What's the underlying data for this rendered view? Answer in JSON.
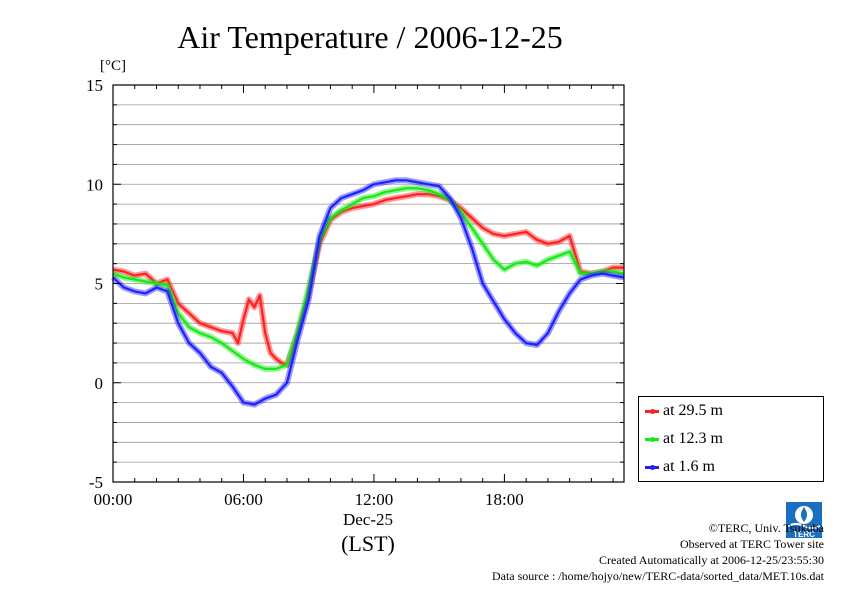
{
  "chart_data": {
    "type": "line",
    "title": "Air Temperature / 2006-12-25",
    "ylabel": "[°C]",
    "xlabel_date": "Dec-25",
    "xlabel_zone": "(LST)",
    "xlim": [
      0,
      23.5
    ],
    "ylim": [
      -5,
      15
    ],
    "yticks": [
      -5,
      0,
      5,
      10,
      15
    ],
    "ytick_labels": [
      "-5",
      "0",
      "5",
      "10",
      "15"
    ],
    "xticks": [
      0,
      6,
      12,
      18
    ],
    "xtick_labels": [
      "00:00",
      "06:00",
      "12:00",
      "18:00"
    ],
    "grid": true,
    "legend_position": "lower-right",
    "series": [
      {
        "name": "at 29.5 m",
        "color": "#ff2020",
        "x": [
          0,
          0.5,
          1,
          1.5,
          2,
          2.5,
          3,
          3.5,
          4,
          4.5,
          5,
          5.5,
          5.75,
          6,
          6.25,
          6.5,
          6.75,
          7,
          7.25,
          7.5,
          7.75,
          8,
          8.5,
          9,
          9.5,
          10,
          10.5,
          11,
          11.5,
          12,
          12.5,
          13,
          13.5,
          14,
          14.5,
          15,
          15.5,
          16,
          16.5,
          17,
          17.5,
          18,
          18.5,
          19,
          19.5,
          20,
          20.5,
          21,
          21.5,
          22,
          22.5,
          23,
          23.5
        ],
        "y": [
          5.7,
          5.6,
          5.4,
          5.5,
          5.0,
          5.2,
          4.0,
          3.5,
          3.0,
          2.8,
          2.6,
          2.5,
          2.0,
          3.2,
          4.2,
          3.8,
          4.4,
          2.5,
          1.5,
          1.2,
          1.0,
          0.9,
          2.5,
          4.5,
          7.0,
          8.2,
          8.6,
          8.8,
          8.9,
          9.0,
          9.2,
          9.3,
          9.4,
          9.5,
          9.5,
          9.4,
          9.2,
          8.8,
          8.3,
          7.8,
          7.5,
          7.4,
          7.5,
          7.6,
          7.2,
          7.0,
          7.1,
          7.4,
          5.6,
          5.5,
          5.6,
          5.8,
          5.8
        ]
      },
      {
        "name": "at 12.3 m",
        "color": "#18e818",
        "x": [
          0,
          0.5,
          1,
          1.5,
          2,
          2.5,
          3,
          3.5,
          4,
          4.5,
          5,
          5.5,
          6,
          6.5,
          7,
          7.5,
          8,
          8.5,
          9,
          9.5,
          10,
          10.5,
          11,
          11.5,
          12,
          12.5,
          13,
          13.5,
          14,
          14.5,
          15,
          15.5,
          16,
          16.5,
          17,
          17.5,
          18,
          18.5,
          19,
          19.5,
          20,
          20.5,
          21,
          21.5,
          22,
          22.5,
          23,
          23.5
        ],
        "y": [
          5.5,
          5.3,
          5.2,
          5.1,
          5.0,
          4.9,
          3.5,
          2.8,
          2.5,
          2.3,
          2.0,
          1.6,
          1.2,
          0.9,
          0.7,
          0.7,
          0.9,
          2.6,
          4.8,
          7.2,
          8.3,
          8.7,
          9.0,
          9.3,
          9.4,
          9.6,
          9.7,
          9.8,
          9.8,
          9.7,
          9.5,
          9.2,
          8.6,
          7.8,
          7.0,
          6.2,
          5.7,
          6.0,
          6.1,
          5.9,
          6.2,
          6.4,
          6.6,
          5.5,
          5.5,
          5.6,
          5.6,
          5.5
        ]
      },
      {
        "name": "at 1.6 m",
        "color": "#2020ff",
        "x": [
          0,
          0.5,
          1,
          1.5,
          2,
          2.5,
          3,
          3.5,
          4,
          4.5,
          5,
          5.5,
          6,
          6.5,
          7,
          7.5,
          8,
          8.5,
          9,
          9.5,
          10,
          10.5,
          11,
          11.5,
          12,
          12.5,
          13,
          13.5,
          14,
          14.5,
          15,
          15.5,
          16,
          16.5,
          17,
          17.5,
          18,
          18.5,
          19,
          19.5,
          20,
          20.5,
          21,
          21.5,
          22,
          22.5,
          23,
          23.5
        ],
        "y": [
          5.3,
          4.8,
          4.6,
          4.5,
          4.8,
          4.6,
          3.0,
          2.0,
          1.5,
          0.8,
          0.5,
          -0.2,
          -1.0,
          -1.1,
          -0.8,
          -0.6,
          0.0,
          2.2,
          4.2,
          7.4,
          8.8,
          9.3,
          9.5,
          9.7,
          10.0,
          10.1,
          10.2,
          10.2,
          10.1,
          10.0,
          9.9,
          9.3,
          8.3,
          6.8,
          5.0,
          4.1,
          3.2,
          2.5,
          2.0,
          1.9,
          2.5,
          3.6,
          4.5,
          5.2,
          5.4,
          5.5,
          5.4,
          5.3
        ]
      }
    ]
  },
  "credits": {
    "line1": "©TERC, Univ. Tsukuba",
    "line2": "Observed at TERC Tower site",
    "line3": "Created Automatically at 2006-12-25/23:55:30",
    "line4": "Data source : /home/hojyo/new/TERC-data/sorted_data/MET.10s.dat"
  },
  "logo_text": "TERC"
}
